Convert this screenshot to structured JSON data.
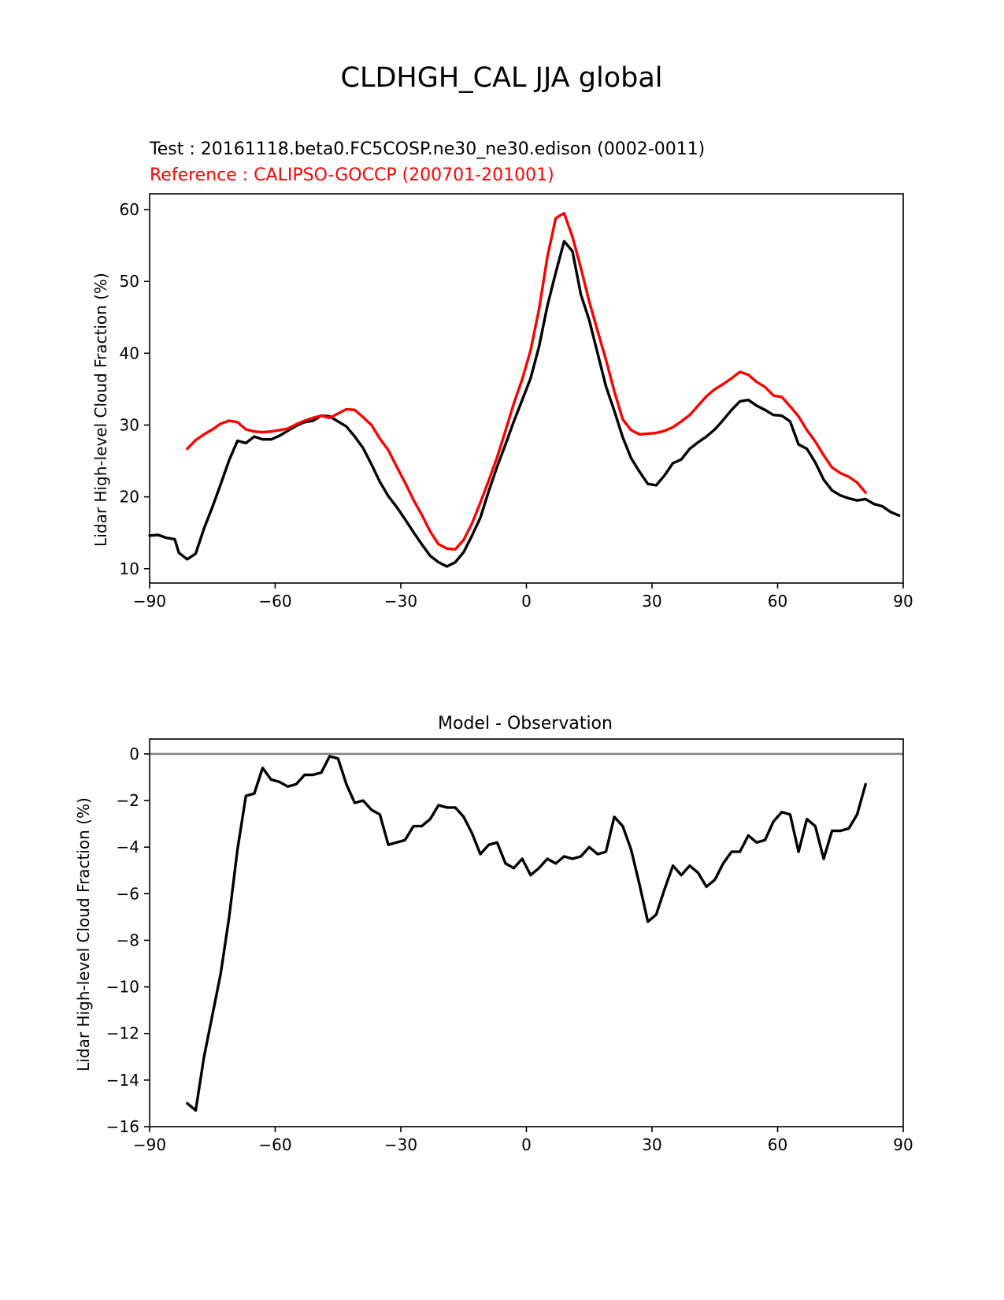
{
  "figure_title": "CLDHGH_CAL JJA global",
  "colors": {
    "test": "#000000",
    "reference": "#ff0000",
    "zero_line": "#808080",
    "axes": "#000000"
  },
  "chart_data": [
    {
      "type": "line",
      "test_label": "Test : 20161118.beta0.FC5COSP.ne30_ne30.edison (0002-0011)",
      "reference_label": "Reference : CALIPSO-GOCCP (200701-201001)",
      "xlabel": "",
      "ylabel": "Lidar High-level Cloud Fraction (%)",
      "xlim": [
        -90,
        90
      ],
      "ylim": [
        8,
        62.2
      ],
      "xticks": [
        -90,
        -60,
        -30,
        0,
        30,
        60,
        90
      ],
      "xtick_labels": [
        "−90",
        "−60",
        "−30",
        "0",
        "30",
        "60",
        "90"
      ],
      "yticks": [
        10,
        20,
        30,
        40,
        50,
        60
      ],
      "ytick_labels": [
        "10",
        "20",
        "30",
        "40",
        "50",
        "60"
      ],
      "series": [
        {
          "name": "test",
          "x": [
            -90,
            -88,
            -86,
            -84,
            -83,
            -81,
            -79,
            -77,
            -75,
            -73,
            -71,
            -69,
            -67,
            -65,
            -63,
            -61,
            -59,
            -57,
            -55,
            -53,
            -51,
            -49,
            -47,
            -45,
            -43,
            -41,
            -39,
            -37,
            -35,
            -33,
            -31,
            -29,
            -27,
            -25,
            -23,
            -21,
            -19,
            -17,
            -15,
            -13,
            -11,
            -9,
            -7,
            -5,
            -3,
            -1,
            1,
            3,
            5,
            7,
            9,
            11,
            13,
            15,
            17,
            19,
            21,
            23,
            25,
            27,
            29,
            31,
            33,
            35,
            37,
            39,
            41,
            43,
            45,
            47,
            49,
            51,
            53,
            55,
            57,
            59,
            61,
            63,
            65,
            67,
            69,
            71,
            73,
            75,
            77,
            79,
            81,
            83,
            85,
            87,
            89
          ],
          "values": [
            14.6,
            14.7,
            14.3,
            14.1,
            12.2,
            11.3,
            12.1,
            15.6,
            18.6,
            21.8,
            25.1,
            27.8,
            27.5,
            28.4,
            28.0,
            28.0,
            28.5,
            29.2,
            29.9,
            30.4,
            30.6,
            31.3,
            31.2,
            30.5,
            29.8,
            28.4,
            26.8,
            24.5,
            22.1,
            20.1,
            18.6,
            16.9,
            15.1,
            13.4,
            11.8,
            10.9,
            10.3,
            10.9,
            12.3,
            14.6,
            17.1,
            20.8,
            24.2,
            27.3,
            30.5,
            33.5,
            36.5,
            40.9,
            46.6,
            51.2,
            55.6,
            54.2,
            48.2,
            44.6,
            40.0,
            35.4,
            32.0,
            28.3,
            25.4,
            23.5,
            21.8,
            21.6,
            23.0,
            24.7,
            25.2,
            26.7,
            27.6,
            28.4,
            29.4,
            30.7,
            32.1,
            33.3,
            33.5,
            32.7,
            32.1,
            31.4,
            31.3,
            30.5,
            27.3,
            26.7,
            24.8,
            22.4,
            20.9,
            20.2,
            19.8,
            19.5,
            19.7,
            19.0,
            18.7,
            17.9,
            17.4
          ]
        },
        {
          "name": "reference",
          "x": [
            -81,
            -79,
            -77,
            -75,
            -73,
            -71,
            -69,
            -67,
            -65,
            -63,
            -61,
            -59,
            -57,
            -55,
            -53,
            -51,
            -49,
            -47,
            -45,
            -43,
            -41,
            -39,
            -37,
            -35,
            -33,
            -31,
            -29,
            -27,
            -25,
            -23,
            -21,
            -19,
            -17,
            -15,
            -13,
            -11,
            -9,
            -7,
            -5,
            -3,
            -1,
            1,
            3,
            5,
            7,
            9,
            11,
            13,
            15,
            17,
            19,
            21,
            23,
            25,
            27,
            29,
            31,
            33,
            35,
            37,
            39,
            41,
            43,
            45,
            47,
            49,
            51,
            53,
            55,
            57,
            59,
            61,
            63,
            65,
            67,
            69,
            71,
            73,
            75,
            77,
            79,
            81
          ],
          "values": [
            26.7,
            27.9,
            28.7,
            29.4,
            30.2,
            30.6,
            30.4,
            29.4,
            29.1,
            29.0,
            29.1,
            29.3,
            29.5,
            30.1,
            30.6,
            31.0,
            31.3,
            31.0,
            31.6,
            32.2,
            32.1,
            31.1,
            30.0,
            28.1,
            26.5,
            24.2,
            22.0,
            19.6,
            17.5,
            15.2,
            13.4,
            12.8,
            12.7,
            14.0,
            16.3,
            19.2,
            22.3,
            25.5,
            29.2,
            33.0,
            36.4,
            40.4,
            46.1,
            53.4,
            58.8,
            59.5,
            56.2,
            51.9,
            47.2,
            43.1,
            39.1,
            34.7,
            30.8,
            29.3,
            28.7,
            28.8,
            28.9,
            29.2,
            29.7,
            30.5,
            31.4,
            32.7,
            34.0,
            35.0,
            35.7,
            36.5,
            37.4,
            37.0,
            36.0,
            35.3,
            34.1,
            33.9,
            32.6,
            31.2,
            29.3,
            27.7,
            25.8,
            24.1,
            23.3,
            22.8,
            22.0,
            20.6
          ]
        }
      ]
    },
    {
      "type": "line",
      "title": "Model - Observation",
      "xlabel": "",
      "ylabel": "Lidar High-level Cloud Fraction (%)",
      "xlim": [
        -90,
        90
      ],
      "ylim": [
        -16,
        0.64
      ],
      "xticks": [
        -90,
        -60,
        -30,
        0,
        30,
        60,
        90
      ],
      "xtick_labels": [
        "−90",
        "−60",
        "−30",
        "0",
        "30",
        "60",
        "90"
      ],
      "yticks": [
        0,
        -2,
        -4,
        -6,
        -8,
        -10,
        -12,
        -14,
        -16
      ],
      "ytick_labels": [
        "0",
        "−2",
        "−4",
        "−6",
        "−8",
        "−10",
        "−12",
        "−14",
        "−16"
      ],
      "zero_line": 0,
      "series": [
        {
          "name": "difference",
          "x": [
            -81,
            -79,
            -77,
            -75,
            -73,
            -71,
            -69,
            -67,
            -65,
            -63,
            -61,
            -59,
            -57,
            -55,
            -53,
            -51,
            -49,
            -47,
            -45,
            -43,
            -41,
            -39,
            -37,
            -35,
            -33,
            -31,
            -29,
            -27,
            -25,
            -23,
            -21,
            -19,
            -17,
            -15,
            -13,
            -11,
            -9,
            -7,
            -5,
            -3,
            -1,
            1,
            3,
            5,
            7,
            9,
            11,
            13,
            15,
            17,
            19,
            21,
            23,
            25,
            27,
            29,
            31,
            33,
            35,
            37,
            39,
            41,
            43,
            45,
            47,
            49,
            51,
            53,
            55,
            57,
            59,
            61,
            63,
            65,
            67,
            69,
            71,
            73,
            75,
            77,
            79,
            81
          ],
          "values": [
            -15.0,
            -15.3,
            -13.0,
            -11.2,
            -9.4,
            -7.0,
            -4.1,
            -1.8,
            -1.7,
            -0.6,
            -1.1,
            -1.2,
            -1.4,
            -1.3,
            -0.9,
            -0.9,
            -0.8,
            -0.1,
            -0.2,
            -1.3,
            -2.1,
            -2.0,
            -2.4,
            -2.6,
            -3.9,
            -3.8,
            -3.7,
            -3.1,
            -3.1,
            -2.8,
            -2.2,
            -2.3,
            -2.3,
            -2.7,
            -3.4,
            -4.3,
            -3.9,
            -3.8,
            -4.7,
            -4.9,
            -4.5,
            -5.2,
            -4.9,
            -4.5,
            -4.7,
            -4.4,
            -4.5,
            -4.4,
            -4.0,
            -4.3,
            -4.2,
            -2.7,
            -3.1,
            -4.1,
            -5.6,
            -7.2,
            -6.9,
            -5.8,
            -4.8,
            -5.2,
            -4.8,
            -5.1,
            -5.7,
            -5.4,
            -4.7,
            -4.2,
            -4.2,
            -3.5,
            -3.8,
            -3.7,
            -2.9,
            -2.5,
            -2.6,
            -4.2,
            -2.8,
            -3.1,
            -4.5,
            -3.3,
            -3.3,
            -3.2,
            -2.6,
            -1.3
          ]
        }
      ]
    }
  ]
}
